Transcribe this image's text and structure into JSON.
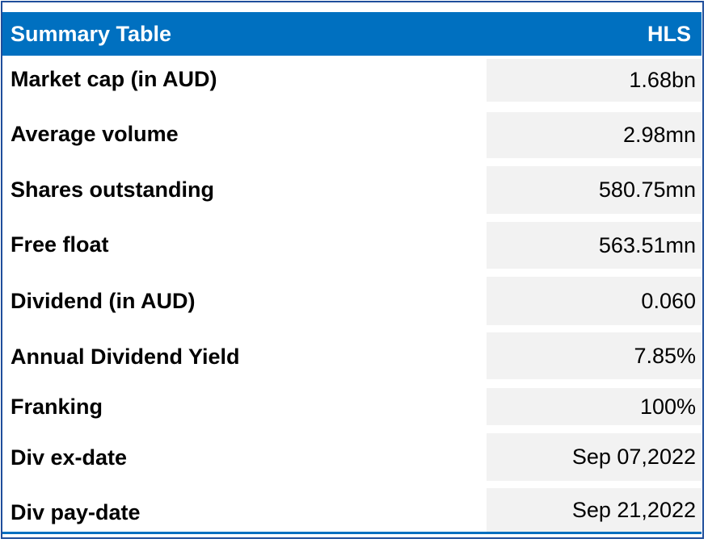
{
  "table": {
    "title": "Summary Table",
    "ticker": "HLS",
    "rows": [
      {
        "label": "Market cap (in AUD)",
        "value": "1.68bn"
      },
      {
        "label": "Average volume",
        "value": "2.98mn"
      },
      {
        "label": "Shares outstanding",
        "value": "580.75mn"
      },
      {
        "label": "Free float",
        "value": "563.51mn"
      },
      {
        "label": "Dividend (in AUD)",
        "value": "0.060"
      },
      {
        "label": "Annual Dividend Yield",
        "value": "7.85%"
      },
      {
        "label": "Franking",
        "value": "100%"
      },
      {
        "label": "Div ex-date",
        "value": "Sep 07,2022"
      },
      {
        "label": "Div pay-date",
        "value": "Sep 21,2022"
      }
    ]
  },
  "colors": {
    "header_bg": "#0070c0",
    "value_cell_bg": "#f2f2f2",
    "border": "#1f4e9b"
  }
}
